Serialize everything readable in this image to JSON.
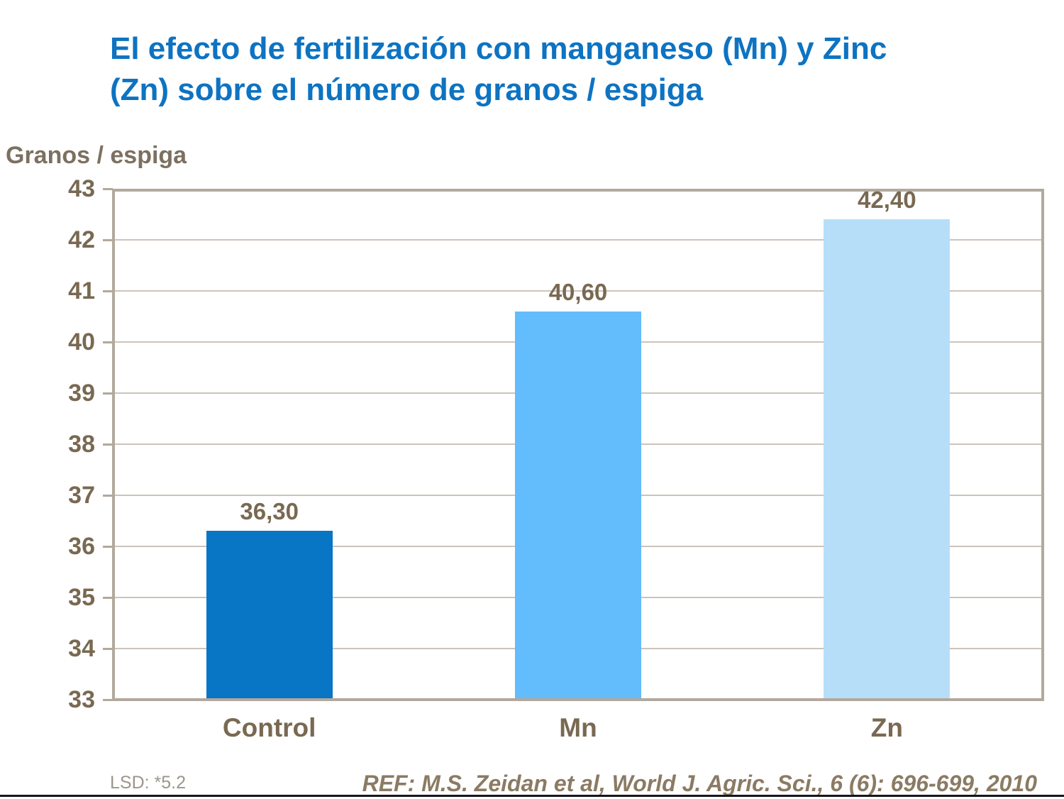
{
  "slide": {
    "title_line1": "El efecto de fertilización con manganeso (Mn) y Zinc",
    "title_line2": "(Zn) sobre el número de granos / espiga",
    "footnote_lsd": "LSD: *5.2",
    "reference": "REF: M.S. Zeidan et al, World J. Agric. Sci., 6 (6): 696-699, 2010"
  },
  "colors": {
    "title_blue": "#0D73C2",
    "chart_text_brown": "#796952",
    "axis_title_brown": "#7C7060",
    "lsd_gray": "#9C958C",
    "reference_brown": "#8B7B64",
    "plot_border_tan": "#B2A89D",
    "gridline_tan": "#CCC4BA",
    "bottom_rule_dark": "#16141E"
  },
  "chart_data": {
    "type": "bar",
    "title": "El efecto de fertilización con manganeso (Mn) y Zinc (Zn) sobre el número de granos / espiga",
    "ylabel": "Granos / espiga",
    "xlabel": "",
    "categories": [
      "Control",
      "Mn",
      "Zn"
    ],
    "values": [
      36.3,
      40.6,
      42.4
    ],
    "value_labels": [
      "36,30",
      "40,60",
      "42,40"
    ],
    "bar_colors": [
      "#0875C5",
      "#63BCFB",
      "#B7DEF9"
    ],
    "ylim": [
      33,
      43
    ],
    "ytick_step": 1,
    "grid": "horizontal",
    "legend": "none",
    "footnote": "LSD: *5.2",
    "reference": "REF: M.S. Zeidan et al, World J. Agric. Sci., 6 (6): 696-699, 2010"
  }
}
